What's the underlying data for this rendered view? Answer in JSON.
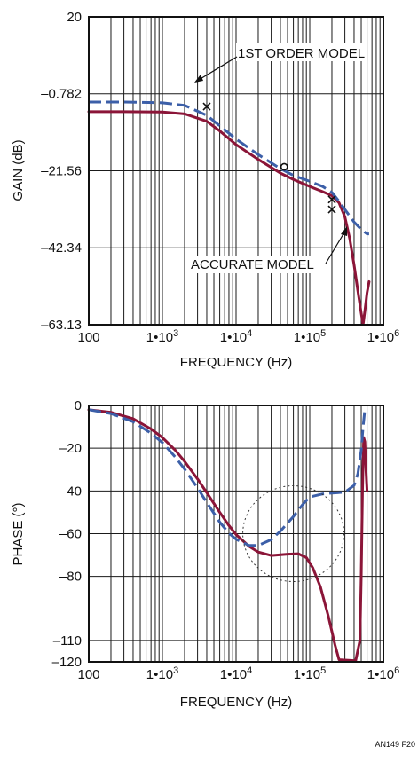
{
  "figure_id": "AN149 F20",
  "colors": {
    "accurate_model": "#8b1538",
    "first_order_model": "#3c5fa8",
    "grid": "#1a1a1a",
    "background": "#ffffff"
  },
  "chart_data": [
    {
      "type": "line",
      "title": "",
      "xlabel": "FREQUENCY (Hz)",
      "ylabel": "GAIN (dB)",
      "xscale": "log",
      "xlim": [
        100,
        1000000
      ],
      "ylim": [
        -63.13,
        20
      ],
      "grid": true,
      "x_tick_labels": [
        "100",
        "1•10",
        "1•10",
        "1•10",
        "1•10"
      ],
      "x_tick_exponents": [
        "",
        "3",
        "4",
        "5",
        "6"
      ],
      "x_ticks": [
        100,
        1000,
        10000,
        100000,
        1000000
      ],
      "y_tick_labels": [
        "20",
        "–0.782",
        "–21.56",
        "–42.34",
        "–63.13"
      ],
      "y_ticks": [
        20,
        -0.782,
        -21.56,
        -42.34,
        -63.13
      ],
      "series": [
        {
          "name": "ACCURATE MODEL",
          "style": "solid",
          "color": "#8b1538",
          "x": [
            100,
            300,
            1000,
            2000,
            4000,
            6000,
            10000,
            20000,
            40000,
            60000,
            100000,
            150000,
            200000,
            250000,
            300000,
            350000,
            400000,
            450000,
            500000,
            530000,
            560000,
            600000,
            640000
          ],
          "y": [
            -5.6,
            -5.6,
            -5.7,
            -6.2,
            -8.2,
            -10.8,
            -14.5,
            -18.5,
            -22.2,
            -23.9,
            -25.8,
            -27.2,
            -28.3,
            -30.2,
            -34.0,
            -40.0,
            -47.0,
            -54.0,
            -60.0,
            -63.1,
            -59.5,
            -54.5,
            -51.5
          ]
        },
        {
          "name": "1ST ORDER MODEL",
          "style": "dashed",
          "color": "#3c5fa8",
          "x": [
            100,
            300,
            1000,
            2000,
            4000,
            6000,
            10000,
            20000,
            40000,
            60000,
            100000,
            150000,
            200000,
            250000,
            300000,
            400000,
            500000,
            600000,
            640000
          ],
          "y": [
            -3.0,
            -3.0,
            -3.2,
            -3.9,
            -6.6,
            -9.4,
            -13.0,
            -17.2,
            -21.0,
            -22.8,
            -24.4,
            -25.8,
            -27.4,
            -29.8,
            -32.0,
            -35.4,
            -37.4,
            -38.6,
            -38.6
          ]
        }
      ],
      "markers": [
        {
          "shape": "x",
          "x": 4000,
          "y": -4.2
        },
        {
          "shape": "x",
          "x": 200000,
          "y": -29.3
        },
        {
          "shape": "x",
          "x": 200000,
          "y": -32.0
        },
        {
          "shape": "circle",
          "x": 45000,
          "y": -20.5
        }
      ],
      "annotations": [
        {
          "text": "1ST ORDER MODEL",
          "target_series": "1ST ORDER MODEL"
        },
        {
          "text": "ACCURATE MODEL",
          "target_series": "ACCURATE MODEL"
        }
      ]
    },
    {
      "type": "line",
      "title": "",
      "xlabel": "FREQUENCY (Hz)",
      "ylabel": "PHASE (°)",
      "xscale": "log",
      "xlim": [
        100,
        1000000
      ],
      "ylim": [
        -120,
        0
      ],
      "grid": true,
      "x_tick_labels": [
        "100",
        "1•10",
        "1•10",
        "1•10",
        "1•10"
      ],
      "x_tick_exponents": [
        "",
        "3",
        "4",
        "5",
        "6"
      ],
      "x_ticks": [
        100,
        1000,
        10000,
        100000,
        1000000
      ],
      "y_tick_labels": [
        "0",
        "–20",
        "–40",
        "–60",
        "–80",
        "–110",
        "–120"
      ],
      "y_ticks": [
        0,
        -20,
        -40,
        -60,
        -80,
        -110,
        -120
      ],
      "series": [
        {
          "name": "ACCURATE MODEL",
          "style": "solid",
          "color": "#8b1538",
          "x": [
            100,
            200,
            400,
            700,
            1000,
            1500,
            2000,
            3000,
            4000,
            6000,
            8000,
            10000,
            15000,
            20000,
            30000,
            50000,
            70000,
            90000,
            110000,
            140000,
            180000,
            220000,
            250000,
            420000,
            480000,
            500000,
            520000,
            540000,
            560000,
            580000,
            600000
          ],
          "y": [
            -2,
            -3.2,
            -6.2,
            -11,
            -15,
            -21,
            -26.2,
            -34.4,
            -40.8,
            -50,
            -56.2,
            -60.4,
            -65.9,
            -68.6,
            -70.2,
            -69.6,
            -69.4,
            -71.2,
            -76,
            -85,
            -99,
            -112,
            -119,
            -119.5,
            -110,
            -80,
            -40,
            -15,
            -17,
            -30,
            -40
          ]
        },
        {
          "name": "1ST ORDER MODEL",
          "style": "dashed",
          "color": "#3c5fa8",
          "x": [
            100,
            200,
            400,
            700,
            1000,
            1500,
            2000,
            3000,
            4000,
            6000,
            8000,
            10000,
            15000,
            20000,
            30000,
            40000,
            60000,
            80000,
            100000,
            150000,
            200000,
            300000,
            400000,
            450000,
            500000,
            530000,
            560000,
            590000
          ],
          "y": [
            -2,
            -3.8,
            -7.6,
            -13,
            -17.4,
            -24.2,
            -29.8,
            -38.6,
            -45.4,
            -54.6,
            -59.8,
            -62.6,
            -65.5,
            -65.5,
            -62.8,
            -58.8,
            -52,
            -46.4,
            -42.8,
            -41.4,
            -41.0,
            -40.6,
            -37.4,
            -32,
            -21,
            -10,
            -2,
            -1
          ]
        }
      ],
      "ellipse": {
        "center_x": 60000,
        "center_y": -60,
        "style": "dotted"
      }
    }
  ]
}
